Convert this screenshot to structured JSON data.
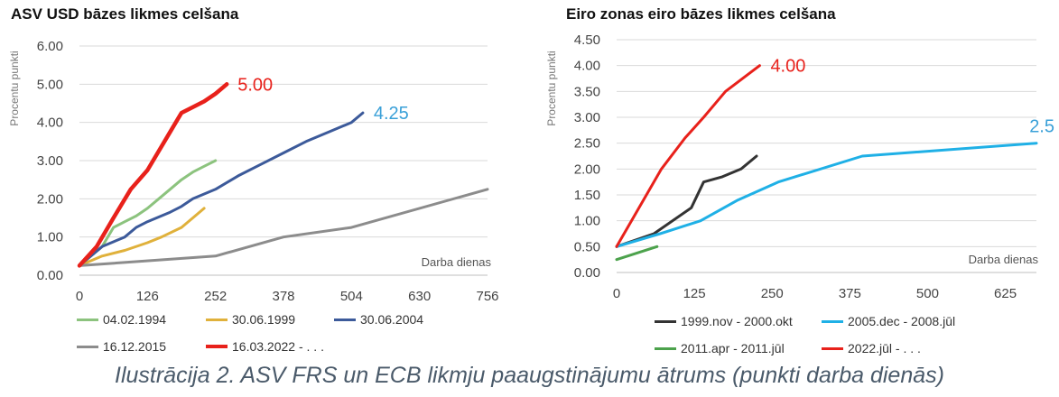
{
  "caption": "Ilustrācija 2. ASV FRS un ECB likmju paaugstinājumu ātrums (punkti darba dienās)",
  "chart_data": [
    {
      "id": "usd",
      "type": "line",
      "title": "ASV USD bāzes likmes celšana",
      "ylabel": "Procentu punkti",
      "xlabel": "Darba dienas",
      "xlim": [
        0,
        756
      ],
      "ylim": [
        0,
        6
      ],
      "xticks": [
        0,
        126,
        252,
        378,
        504,
        630,
        756
      ],
      "yticks": [
        0,
        1,
        2,
        3,
        4,
        5,
        6
      ],
      "ytick_labels": [
        "0.00",
        "1.00",
        "2.00",
        "3.00",
        "4.00",
        "5.00",
        "6.00"
      ],
      "grid": true,
      "legend_position": "bottom",
      "series": [
        {
          "name": "04.02.1994",
          "color": "#8cc37e",
          "width": 3,
          "x": [
            0,
            42,
            63,
            84,
            105,
            126,
            147,
            168,
            189,
            210,
            231,
            252
          ],
          "y": [
            0.25,
            0.75,
            1.25,
            1.4,
            1.55,
            1.75,
            2.0,
            2.25,
            2.5,
            2.7,
            2.85,
            3.0
          ]
        },
        {
          "name": "30.06.1999",
          "color": "#e0b13b",
          "width": 3,
          "x": [
            0,
            42,
            84,
            126,
            152,
            189,
            210,
            231
          ],
          "y": [
            0.25,
            0.5,
            0.65,
            0.85,
            1.0,
            1.25,
            1.5,
            1.75
          ]
        },
        {
          "name": "30.06.2004",
          "color": "#3c5a9a",
          "width": 3,
          "x": [
            0,
            42,
            84,
            105,
            126,
            168,
            189,
            210,
            252,
            294,
            336,
            378,
            420,
            462,
            504,
            525
          ],
          "y": [
            0.25,
            0.75,
            1.0,
            1.25,
            1.4,
            1.65,
            1.8,
            2.0,
            2.25,
            2.6,
            2.9,
            3.2,
            3.5,
            3.75,
            4.0,
            4.25
          ]
        },
        {
          "name": "16.12.2015",
          "color": "#8c8c8c",
          "width": 3,
          "x": [
            0,
            252,
            378,
            504,
            756
          ],
          "y": [
            0.25,
            0.5,
            1.0,
            1.25,
            2.25
          ]
        },
        {
          "name": "16.03.2022 - . . .",
          "color": "#e8211b",
          "width": 4.5,
          "x": [
            0,
            32,
            63,
            95,
            126,
            147,
            168,
            189,
            210,
            231,
            252,
            273
          ],
          "y": [
            0.25,
            0.75,
            1.5,
            2.25,
            2.75,
            3.25,
            3.75,
            4.25,
            4.4,
            4.55,
            4.75,
            5.0
          ]
        }
      ],
      "annotations": [
        {
          "text": "5.00",
          "x": 273,
          "y": 5.0,
          "color": "#e8211b"
        },
        {
          "text": "4.25",
          "x": 525,
          "y": 4.25,
          "color": "#3aa0d8"
        }
      ]
    },
    {
      "id": "eur",
      "type": "line",
      "title": "Eiro zonas eiro bāzes likmes celšana",
      "ylabel": "Procentu punkti",
      "xlabel": "Darba dienas",
      "xlim": [
        0,
        675
      ],
      "ylim": [
        0,
        4.5
      ],
      "xticks": [
        0,
        125,
        250,
        375,
        500,
        625
      ],
      "yticks": [
        0,
        0.5,
        1,
        1.5,
        2,
        2.5,
        3,
        3.5,
        4,
        4.5
      ],
      "ytick_labels": [
        "0.00",
        "0.50",
        "1.00",
        "1.50",
        "2.00",
        "2.50",
        "3.00",
        "3.50",
        "4.00",
        "4.50"
      ],
      "grid": true,
      "legend_position": "bottom",
      "series": [
        {
          "name": "1999.nov - 2000.okt",
          "color": "#333333",
          "width": 3,
          "x": [
            0,
            60,
            120,
            140,
            170,
            200,
            225
          ],
          "y": [
            0.5,
            0.75,
            1.25,
            1.75,
            1.85,
            2.0,
            2.25
          ]
        },
        {
          "name": "2005.dec - 2008.jūl",
          "color": "#1fb0e6",
          "width": 3,
          "x": [
            0,
            70,
            135,
            195,
            260,
            395,
            675
          ],
          "y": [
            0.5,
            0.75,
            1.0,
            1.4,
            1.75,
            2.25,
            2.5
          ]
        },
        {
          "name": "2011.apr - 2011.jūl",
          "color": "#4ca24c",
          "width": 3,
          "x": [
            0,
            65
          ],
          "y": [
            0.25,
            0.5
          ]
        },
        {
          "name": "2022.jūl - . . .",
          "color": "#e8211b",
          "width": 3,
          "x": [
            0,
            72,
            110,
            140,
            175,
            230
          ],
          "y": [
            0.5,
            2.0,
            2.6,
            3.0,
            3.5,
            4.0
          ]
        }
      ],
      "annotations": [
        {
          "text": "4.00",
          "x": 230,
          "y": 4.0,
          "color": "#e8211b"
        },
        {
          "text": "2.5",
          "x": 675,
          "y": 2.5,
          "color": "#3aa0d8"
        }
      ]
    }
  ]
}
